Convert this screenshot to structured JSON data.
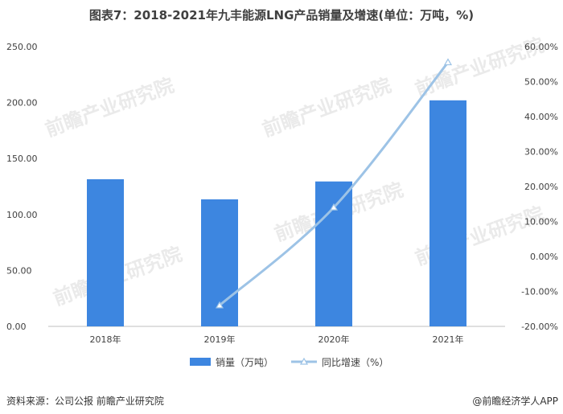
{
  "title": "图表7：2018-2021年九丰能源LNG产品销量及增速(单位：万吨，%)",
  "source": "资料来源：公司公报 前瞻产业研究院",
  "app_credit": "@前瞻经济学人APP",
  "watermark_text": "前瞻产业研究院",
  "colors": {
    "bar": "#3d86e0",
    "line": "#9dc3e6",
    "axis": "#bfbfbf",
    "text": "#404040"
  },
  "chart_data": {
    "type": "bar",
    "categories": [
      "2018年",
      "2019年",
      "2020年",
      "2021年"
    ],
    "series": [
      {
        "name": "销量（万吨）",
        "type": "bar",
        "axis": "left",
        "values": [
          131.5,
          113.5,
          129.5,
          202.0
        ]
      },
      {
        "name": "同比增速（%）",
        "type": "line",
        "axis": "right",
        "values": [
          null,
          -14.0,
          14.0,
          55.5
        ]
      }
    ],
    "y_left": {
      "min": 0,
      "max": 250,
      "ticks": [
        "0.00",
        "50.00",
        "100.00",
        "150.00",
        "200.00",
        "250.00"
      ]
    },
    "y_right": {
      "min": -20,
      "max": 60,
      "ticks": [
        "-20.00%",
        "-10.00%",
        "0.00%",
        "10.00%",
        "20.00%",
        "30.00%",
        "40.00%",
        "50.00%",
        "60.00%"
      ]
    },
    "grid": false,
    "legend_position": "bottom"
  }
}
